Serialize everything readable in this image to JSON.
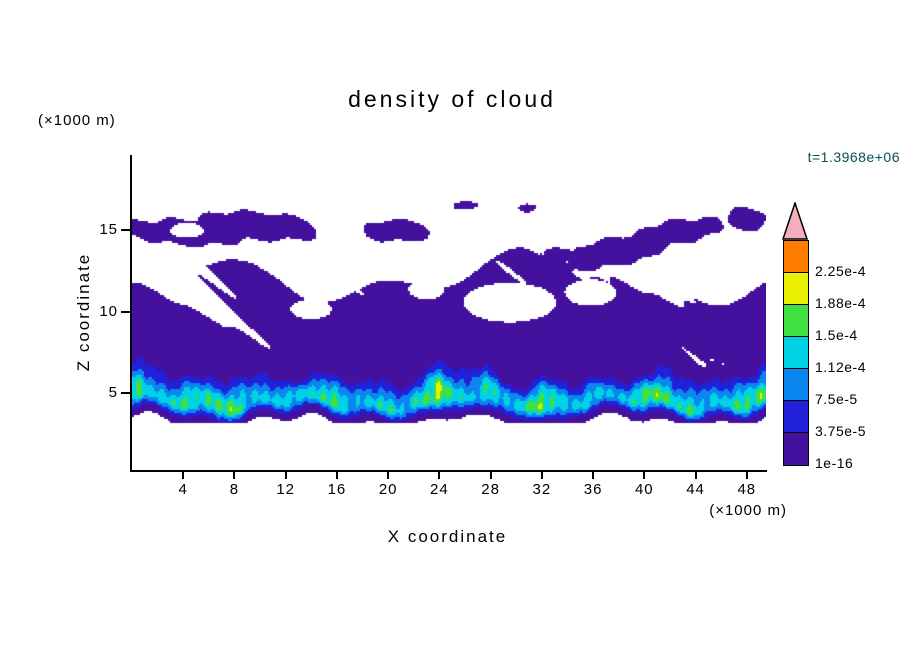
{
  "title": "density of cloud",
  "timestamp": "t=1.3968e+06",
  "axes": {
    "x": {
      "label": "X coordinate",
      "unit": "(×1000 m)",
      "ticks": [
        4,
        8,
        12,
        16,
        20,
        24,
        28,
        32,
        36,
        40,
        44,
        48
      ],
      "range": [
        0,
        49.5
      ]
    },
    "z": {
      "label": "Z coordinate",
      "unit": "(×1000 m)",
      "ticks": [
        5,
        10,
        15
      ],
      "range": [
        0.4,
        19.6
      ]
    }
  },
  "colorbar": {
    "tick_labels": [
      "1e-16",
      "3.75e-5",
      "7.5e-5",
      "1.12e-4",
      "1.5e-4",
      "1.88e-4",
      "2.25e-4"
    ],
    "segment_colors": [
      "#44109e",
      "#2121d9",
      "#0b86ef",
      "#00d2e6",
      "#3fe03f",
      "#e8ef00",
      "#ff7d00"
    ],
    "overflow_arrow_color": "#f3aebc"
  },
  "colors": {
    "axis": "#000000",
    "timestamp_text": "#0b4e4e",
    "background": "#ffffff"
  },
  "chart_data": {
    "type": "heatmap",
    "title": "density of cloud",
    "xlabel": "X coordinate (×1000 m)",
    "ylabel": "Z coordinate (×1000 m)",
    "time_annotation": "t=1.3968e+06",
    "x_range": [
      0,
      49.5
    ],
    "z_range": [
      0.4,
      19.6
    ],
    "x_ticks": [
      4,
      8,
      12,
      16,
      20,
      24,
      28,
      32,
      36,
      40,
      44,
      48
    ],
    "z_ticks": [
      5,
      10,
      15
    ],
    "levels": [
      "1e-16",
      "3.75e-5",
      "7.5e-5",
      "1.12e-4",
      "1.5e-4",
      "1.88e-4",
      "2.25e-4"
    ],
    "levels_numeric": [
      1e-16,
      3.75e-05,
      7.5e-05,
      0.000112,
      0.00015,
      0.000188,
      0.000225
    ],
    "legend_position": "right",
    "grid": false,
    "description": "Filled contour cross-section (X vs Z, both in units of 1000 m) of cloud density at model time t=1.3968e+06. A dense cloud layer with maxima around 1.5e-4 to 2e-4 lies near z=4-6, fringed by blue and cyan shades; an extensive low-density deck (1e-16 to 3.75e-5, purple) spans z~6-13 across the domain, with scattered elongated cloud streaks near z~14-17 and clear white sky above and below.",
    "field_model": {
      "layer_base_z": 3.3,
      "layer_center_z": 4.55,
      "upper_top_z": 17.6,
      "holes": [
        [
          29.5,
          10.6,
          3.6,
          1.2
        ],
        [
          35.8,
          11.2,
          2.0,
          0.8
        ],
        [
          14,
          10.2,
          1.6,
          0.6
        ],
        [
          23,
          11.4,
          1.4,
          0.6
        ],
        [
          4.3,
          15.0,
          1.3,
          0.45
        ]
      ],
      "streaks": [
        [
          7.5,
          15.1,
          8.5,
          1.05,
          0.02,
          0.3
        ],
        [
          20.5,
          14.9,
          3.0,
          0.75,
          0,
          1.2
        ],
        [
          39,
          14.0,
          8.5,
          1.0,
          0.22,
          2.1
        ],
        [
          33.5,
          13.5,
          2.0,
          0.5,
          0,
          0.8
        ],
        [
          47.8,
          15.6,
          2.2,
          0.8,
          0,
          2.6
        ],
        [
          26,
          16.5,
          1.0,
          0.3,
          0,
          0
        ],
        [
          31,
          16.4,
          0.8,
          0.3,
          0,
          1
        ]
      ]
    }
  }
}
